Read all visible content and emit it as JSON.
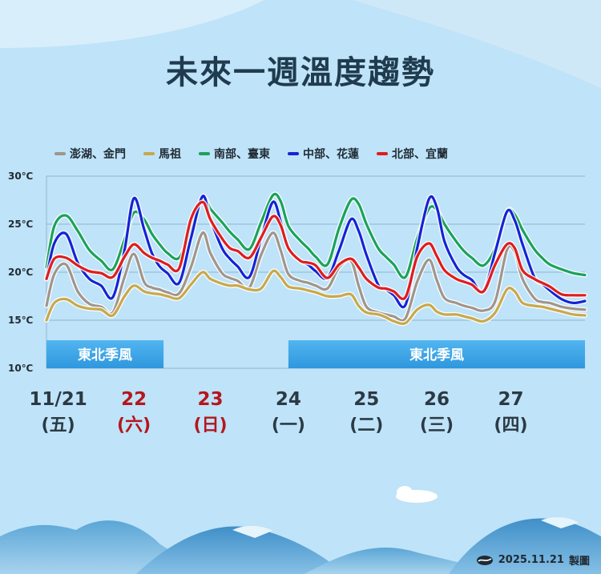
{
  "title": "未來一週溫度趨勢",
  "footer": {
    "date": "2025.11.21",
    "label": "製圖",
    "logo_icon": "cwa-logo-icon"
  },
  "colors": {
    "background": "#bfe3f8",
    "band": "#3fa8e8",
    "grid": "#8fb7cf"
  },
  "chart_data": {
    "type": "line",
    "title": "未來一週溫度趨勢",
    "xlabel": "",
    "ylabel": "",
    "ylim": [
      10,
      30
    ],
    "yticks": [
      "10℃",
      "15℃",
      "20℃",
      "25℃",
      "30℃"
    ],
    "x_range": [
      0,
      6.9
    ],
    "x": [
      0,
      0.1,
      0.25,
      0.4,
      0.55,
      0.7,
      0.85,
      1,
      1.12,
      1.25,
      1.35,
      1.45,
      1.55,
      1.7,
      1.85,
      2,
      2.1,
      2.25,
      2.35,
      2.45,
      2.6,
      2.75,
      2.9,
      3,
      3.1,
      3.25,
      3.35,
      3.45,
      3.6,
      3.75,
      3.9,
      4,
      4.1,
      4.25,
      4.35,
      4.45,
      4.6,
      4.75,
      4.9,
      5,
      5.1,
      5.25,
      5.35,
      5.45,
      5.6,
      5.75,
      5.9,
      6,
      6.1,
      6.25,
      6.35,
      6.45,
      6.6,
      6.75,
      6.9
    ],
    "day_labels": [
      {
        "x": 0.15,
        "date": "11/21",
        "weekday": "(五)",
        "holiday": false
      },
      {
        "x": 1.12,
        "date": "22",
        "weekday": "(六)",
        "holiday": true
      },
      {
        "x": 2.1,
        "date": "23",
        "weekday": "(日)",
        "holiday": true
      },
      {
        "x": 3.1,
        "date": "24",
        "weekday": "(一)",
        "holiday": false
      },
      {
        "x": 4.1,
        "date": "25",
        "weekday": "(二)",
        "holiday": false
      },
      {
        "x": 5.0,
        "date": "26",
        "weekday": "(三)",
        "holiday": false
      },
      {
        "x": 5.95,
        "date": "27",
        "weekday": "(四)",
        "holiday": false
      }
    ],
    "bands": [
      {
        "label": "東北季風",
        "x_start": 0,
        "x_end": 1.5
      },
      {
        "label": "東北季風",
        "x_start": 3.1,
        "x_end": 6.9
      }
    ],
    "series": [
      {
        "name": "澎湖、金門",
        "color": "#a0958c",
        "values": [
          16.5,
          19.8,
          20.8,
          18.0,
          16.7,
          16.4,
          15.8,
          19.5,
          21.9,
          19.0,
          18.4,
          18.2,
          17.9,
          17.8,
          20.5,
          24.1,
          22.0,
          19.9,
          19.4,
          19.1,
          18.4,
          21.8,
          24.1,
          22.3,
          19.8,
          19.1,
          18.9,
          18.6,
          18.3,
          20.5,
          21.2,
          18.6,
          16.4,
          15.8,
          15.6,
          15.4,
          15.2,
          19.0,
          21.3,
          19.2,
          17.3,
          16.8,
          16.5,
          16.3,
          16.0,
          17.0,
          22.3,
          22.1,
          19.3,
          17.3,
          16.9,
          16.8,
          16.4,
          16.2,
          16.1
        ]
      },
      {
        "name": "馬祖",
        "color": "#c8a84a",
        "values": [
          15.0,
          16.8,
          17.2,
          16.5,
          16.2,
          16.1,
          15.5,
          17.5,
          18.6,
          18.0,
          17.8,
          17.7,
          17.5,
          17.3,
          18.7,
          20.0,
          19.3,
          18.8,
          18.6,
          18.6,
          18.2,
          18.3,
          20.1,
          19.5,
          18.5,
          18.3,
          18.1,
          17.9,
          17.5,
          17.5,
          17.7,
          16.5,
          15.8,
          15.6,
          15.3,
          14.9,
          14.7,
          16.1,
          16.6,
          15.9,
          15.6,
          15.6,
          15.4,
          15.2,
          14.9,
          15.8,
          18.2,
          18.0,
          16.8,
          16.5,
          16.4,
          16.2,
          15.9,
          15.6,
          15.5
        ]
      },
      {
        "name": "南部、臺東",
        "color": "#1aa35a",
        "values": [
          20.5,
          24.8,
          25.9,
          24.3,
          22.3,
          21.2,
          20.3,
          23.4,
          26.2,
          25.5,
          24.0,
          22.9,
          22.0,
          21.5,
          24.5,
          27.8,
          26.6,
          25.2,
          24.2,
          23.4,
          22.4,
          25.2,
          28.0,
          27.4,
          24.8,
          23.3,
          22.5,
          21.6,
          20.8,
          24.6,
          27.5,
          27.1,
          25.0,
          22.5,
          21.6,
          20.8,
          19.5,
          23.5,
          26.6,
          26.5,
          25.0,
          23.2,
          22.2,
          21.5,
          20.7,
          22.5,
          26.3,
          26.0,
          24.4,
          22.4,
          21.5,
          20.8,
          20.3,
          19.9,
          19.7
        ]
      },
      {
        "name": "中部、花蓮",
        "color": "#1424d6",
        "values": [
          19.3,
          23.0,
          24.0,
          21.0,
          19.3,
          18.6,
          17.4,
          22.3,
          27.7,
          24.5,
          22.0,
          20.6,
          19.9,
          18.9,
          23.5,
          27.9,
          25.5,
          22.5,
          21.4,
          20.6,
          19.5,
          23.5,
          27.3,
          25.3,
          22.5,
          21.2,
          20.8,
          20.1,
          19.4,
          22.3,
          25.5,
          24.3,
          21.8,
          18.7,
          18.2,
          17.6,
          16.6,
          22.5,
          27.6,
          26.8,
          23.2,
          20.6,
          19.7,
          19.2,
          18.0,
          22.1,
          26.3,
          25.4,
          22.9,
          19.5,
          18.8,
          18.1,
          17.2,
          16.8,
          17.0
        ]
      },
      {
        "name": "北部、宜蘭",
        "color": "#e01c1c",
        "values": [
          19.3,
          21.4,
          21.5,
          20.7,
          20.1,
          19.9,
          19.5,
          21.6,
          22.9,
          22.0,
          21.5,
          21.2,
          20.8,
          20.4,
          25.5,
          27.3,
          25.5,
          23.5,
          22.5,
          22.2,
          21.5,
          23.6,
          25.8,
          24.9,
          22.5,
          21.2,
          21.0,
          20.7,
          19.4,
          20.8,
          21.4,
          20.5,
          19.3,
          18.4,
          18.3,
          18.0,
          17.4,
          21.6,
          23.0,
          21.7,
          20.2,
          19.3,
          19.0,
          18.7,
          18.0,
          20.8,
          22.9,
          22.5,
          20.2,
          19.3,
          18.9,
          18.5,
          17.7,
          17.6,
          17.6
        ]
      }
    ]
  }
}
